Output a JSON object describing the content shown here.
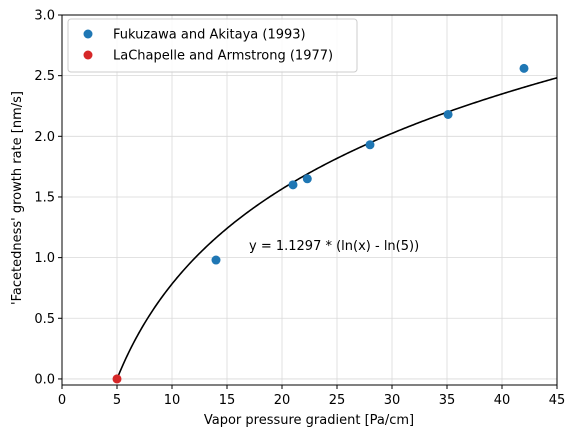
{
  "chart_data": {
    "type": "scatter",
    "title": "",
    "xlabel": "Vapor pressure gradient [Pa/cm]",
    "ylabel": "'Facetedness' growth rate [nm/s]",
    "xlim": [
      0,
      45
    ],
    "ylim": [
      -0.05,
      3.0
    ],
    "x_ticks": [
      0,
      5,
      10,
      15,
      20,
      25,
      30,
      35,
      40,
      45
    ],
    "y_ticks": [
      0.0,
      0.5,
      1.0,
      1.5,
      2.0,
      2.5,
      3.0
    ],
    "x_tick_labels": [
      "0",
      "5",
      "10",
      "15",
      "20",
      "25",
      "30",
      "35",
      "40",
      "45"
    ],
    "y_tick_labels": [
      "0.0",
      "0.5",
      "1.0",
      "1.5",
      "2.0",
      "2.5",
      "3.0"
    ],
    "grid": true,
    "legend_position": "top-left",
    "series": [
      {
        "name": "Fukuzawa and Akitaya (1993)",
        "color": "#1f77b4",
        "x": [
          14,
          21,
          22.3,
          28,
          35.1,
          42
        ],
        "y": [
          0.98,
          1.6,
          1.65,
          1.93,
          2.18,
          2.56
        ]
      },
      {
        "name": "LaChapelle and Armstrong (1977)",
        "color": "#d62728",
        "x": [
          5
        ],
        "y": [
          0.0
        ]
      }
    ],
    "fit_curve": {
      "color": "#000000",
      "coefficient": 1.1297,
      "x0": 5,
      "x_range": [
        5,
        45
      ]
    },
    "annotation": {
      "text": "y = 1.1297 * (ln(x) - ln(5))",
      "x": 17,
      "y": 1.1
    }
  }
}
